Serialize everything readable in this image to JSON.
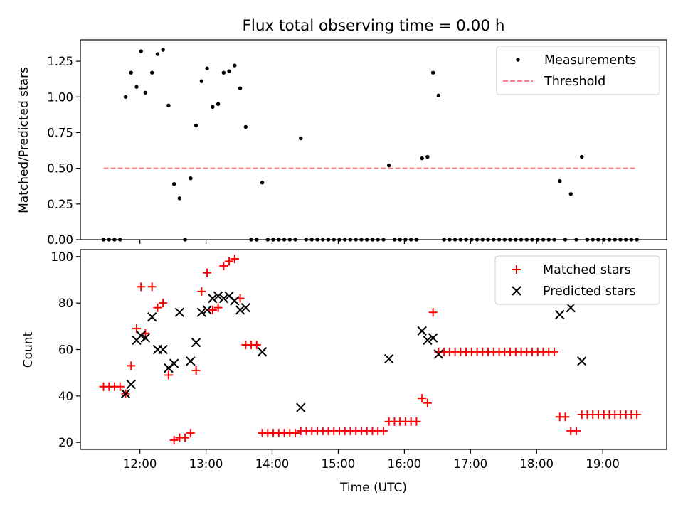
{
  "figure": {
    "title": "Flux total observing time = 0.00 h",
    "xlabel": "Time (UTC)"
  },
  "chart_data": [
    {
      "type": "scatter",
      "ylabel": "Matched/Predicted stars",
      "xlim": [
        "11:06",
        "19:58"
      ],
      "ylim": [
        0,
        1.4
      ],
      "yticks": [
        0.0,
        0.25,
        0.5,
        0.75,
        1.0,
        1.25
      ],
      "ytick_labels": [
        "0.00",
        "0.25",
        "0.50",
        "0.75",
        "1.00",
        "1.25"
      ],
      "xticks": [
        "12:00",
        "13:00",
        "14:00",
        "15:00",
        "16:00",
        "17:00",
        "18:00",
        "19:00"
      ],
      "legend": {
        "position": "top-right",
        "entries": [
          "Measurements",
          "Threshold"
        ]
      },
      "series": [
        {
          "name": "Measurements",
          "color": "#000000",
          "marker": "dot",
          "points": [
            [
              "11:27",
              0
            ],
            [
              "11:32",
              0
            ],
            [
              "11:37",
              0
            ],
            [
              "11:42",
              0
            ],
            [
              "11:47",
              1.0
            ],
            [
              "11:52",
              1.17
            ],
            [
              "11:57",
              1.07
            ],
            [
              "12:01",
              1.32
            ],
            [
              "12:05",
              1.03
            ],
            [
              "12:11",
              1.17
            ],
            [
              "12:16",
              1.3
            ],
            [
              "12:21",
              1.33
            ],
            [
              "12:26",
              0.94
            ],
            [
              "12:31",
              0.39
            ],
            [
              "12:36",
              0.29
            ],
            [
              "12:41",
              0
            ],
            [
              "12:46",
              0.43
            ],
            [
              "12:51",
              0.8
            ],
            [
              "12:56",
              1.11
            ],
            [
              "13:01",
              1.2
            ],
            [
              "13:06",
              0.93
            ],
            [
              "13:11",
              0.95
            ],
            [
              "13:16",
              1.17
            ],
            [
              "13:21",
              1.18
            ],
            [
              "13:26",
              1.22
            ],
            [
              "13:31",
              1.06
            ],
            [
              "13:36",
              0.79
            ],
            [
              "13:41",
              0
            ],
            [
              "13:46",
              0
            ],
            [
              "13:51",
              0.4
            ],
            [
              "13:56",
              0
            ],
            [
              "14:01",
              0
            ],
            [
              "14:06",
              0
            ],
            [
              "14:11",
              0
            ],
            [
              "14:16",
              0
            ],
            [
              "14:21",
              0
            ],
            [
              "14:26",
              0.71
            ],
            [
              "14:31",
              0
            ],
            [
              "14:36",
              0
            ],
            [
              "14:41",
              0
            ],
            [
              "14:46",
              0
            ],
            [
              "14:51",
              0
            ],
            [
              "14:56",
              0
            ],
            [
              "15:01",
              0
            ],
            [
              "15:06",
              0
            ],
            [
              "15:11",
              0
            ],
            [
              "15:16",
              0
            ],
            [
              "15:21",
              0
            ],
            [
              "15:26",
              0
            ],
            [
              "15:31",
              0
            ],
            [
              "15:36",
              0
            ],
            [
              "15:41",
              0
            ],
            [
              "15:46",
              0.52
            ],
            [
              "15:51",
              0
            ],
            [
              "15:56",
              0
            ],
            [
              "16:01",
              0
            ],
            [
              "16:06",
              0
            ],
            [
              "16:11",
              0
            ],
            [
              "16:16",
              0.57
            ],
            [
              "16:21",
              0.58
            ],
            [
              "16:26",
              1.17
            ],
            [
              "16:31",
              1.01
            ],
            [
              "16:36",
              0
            ],
            [
              "16:41",
              0
            ],
            [
              "16:46",
              0
            ],
            [
              "16:51",
              0
            ],
            [
              "16:56",
              0
            ],
            [
              "17:01",
              0
            ],
            [
              "17:06",
              0
            ],
            [
              "17:11",
              0
            ],
            [
              "17:16",
              0
            ],
            [
              "17:21",
              0
            ],
            [
              "17:26",
              0
            ],
            [
              "17:31",
              0
            ],
            [
              "17:36",
              0
            ],
            [
              "17:41",
              0
            ],
            [
              "17:46",
              0
            ],
            [
              "17:51",
              0
            ],
            [
              "17:56",
              0
            ],
            [
              "18:01",
              0
            ],
            [
              "18:06",
              0
            ],
            [
              "18:11",
              0
            ],
            [
              "18:16",
              0
            ],
            [
              "18:21",
              0.41
            ],
            [
              "18:26",
              0
            ],
            [
              "18:31",
              0.32
            ],
            [
              "18:36",
              0
            ],
            [
              "18:41",
              0.58
            ],
            [
              "18:46",
              0
            ],
            [
              "18:51",
              0
            ],
            [
              "18:56",
              0
            ],
            [
              "19:01",
              0
            ],
            [
              "19:06",
              0
            ],
            [
              "19:11",
              0
            ],
            [
              "19:16",
              0
            ],
            [
              "19:21",
              0
            ],
            [
              "19:26",
              0
            ],
            [
              "19:31",
              0
            ]
          ]
        },
        {
          "name": "Threshold",
          "color": "#ff7f7f",
          "marker": "dashed-line",
          "points": [
            [
              "11:27",
              0.5
            ],
            [
              "19:31",
              0.5
            ]
          ]
        }
      ]
    },
    {
      "type": "scatter",
      "ylabel": "Count",
      "xlim": [
        "11:06",
        "19:58"
      ],
      "ylim": [
        17,
        103
      ],
      "yticks": [
        20,
        40,
        60,
        80,
        100
      ],
      "ytick_labels": [
        "20",
        "40",
        "60",
        "80",
        "100"
      ],
      "xticks": [
        "12:00",
        "13:00",
        "14:00",
        "15:00",
        "16:00",
        "17:00",
        "18:00",
        "19:00"
      ],
      "xtick_labels": [
        "12:00",
        "13:00",
        "14:00",
        "15:00",
        "16:00",
        "17:00",
        "18:00",
        "19:00"
      ],
      "legend": {
        "position": "top-right",
        "entries": [
          "Matched stars",
          "Predicted stars"
        ]
      },
      "series": [
        {
          "name": "Matched stars",
          "color": "#ff0000",
          "marker": "plus",
          "points": [
            [
              "11:27",
              44
            ],
            [
              "11:32",
              44
            ],
            [
              "11:37",
              44
            ],
            [
              "11:42",
              44
            ],
            [
              "11:47",
              41
            ],
            [
              "11:52",
              53
            ],
            [
              "11:57",
              69
            ],
            [
              "12:01",
              87
            ],
            [
              "12:05",
              67
            ],
            [
              "12:11",
              87
            ],
            [
              "12:16",
              78
            ],
            [
              "12:21",
              80
            ],
            [
              "12:26",
              49
            ],
            [
              "12:31",
              21
            ],
            [
              "12:36",
              22
            ],
            [
              "12:41",
              22
            ],
            [
              "12:46",
              24
            ],
            [
              "12:51",
              51
            ],
            [
              "12:56",
              85
            ],
            [
              "13:01",
              93
            ],
            [
              "13:06",
              77
            ],
            [
              "13:11",
              78
            ],
            [
              "13:16",
              96
            ],
            [
              "13:21",
              98
            ],
            [
              "13:26",
              99
            ],
            [
              "13:31",
              82
            ],
            [
              "13:36",
              62
            ],
            [
              "13:41",
              62
            ],
            [
              "13:46",
              62
            ],
            [
              "13:51",
              24
            ],
            [
              "13:56",
              24
            ],
            [
              "14:01",
              24
            ],
            [
              "14:06",
              24
            ],
            [
              "14:11",
              24
            ],
            [
              "14:16",
              24
            ],
            [
              "14:21",
              24
            ],
            [
              "14:26",
              25
            ],
            [
              "14:31",
              25
            ],
            [
              "14:36",
              25
            ],
            [
              "14:41",
              25
            ],
            [
              "14:46",
              25
            ],
            [
              "14:51",
              25
            ],
            [
              "14:56",
              25
            ],
            [
              "15:01",
              25
            ],
            [
              "15:06",
              25
            ],
            [
              "15:11",
              25
            ],
            [
              "15:16",
              25
            ],
            [
              "15:21",
              25
            ],
            [
              "15:26",
              25
            ],
            [
              "15:31",
              25
            ],
            [
              "15:36",
              25
            ],
            [
              "15:41",
              25
            ],
            [
              "15:46",
              29
            ],
            [
              "15:51",
              29
            ],
            [
              "15:56",
              29
            ],
            [
              "16:01",
              29
            ],
            [
              "16:06",
              29
            ],
            [
              "16:11",
              29
            ],
            [
              "16:16",
              39
            ],
            [
              "16:21",
              37
            ],
            [
              "16:26",
              76
            ],
            [
              "16:31",
              59
            ],
            [
              "16:36",
              59
            ],
            [
              "16:41",
              59
            ],
            [
              "16:46",
              59
            ],
            [
              "16:51",
              59
            ],
            [
              "16:56",
              59
            ],
            [
              "17:01",
              59
            ],
            [
              "17:06",
              59
            ],
            [
              "17:11",
              59
            ],
            [
              "17:16",
              59
            ],
            [
              "17:21",
              59
            ],
            [
              "17:26",
              59
            ],
            [
              "17:31",
              59
            ],
            [
              "17:36",
              59
            ],
            [
              "17:41",
              59
            ],
            [
              "17:46",
              59
            ],
            [
              "17:51",
              59
            ],
            [
              "17:56",
              59
            ],
            [
              "18:01",
              59
            ],
            [
              "18:06",
              59
            ],
            [
              "18:11",
              59
            ],
            [
              "18:16",
              59
            ],
            [
              "18:21",
              31
            ],
            [
              "18:26",
              31
            ],
            [
              "18:31",
              25
            ],
            [
              "18:36",
              25
            ],
            [
              "18:41",
              32
            ],
            [
              "18:46",
              32
            ],
            [
              "18:51",
              32
            ],
            [
              "18:56",
              32
            ],
            [
              "19:01",
              32
            ],
            [
              "19:06",
              32
            ],
            [
              "19:11",
              32
            ],
            [
              "19:16",
              32
            ],
            [
              "19:21",
              32
            ],
            [
              "19:26",
              32
            ],
            [
              "19:31",
              32
            ]
          ]
        },
        {
          "name": "Predicted stars",
          "color": "#000000",
          "marker": "x",
          "points": [
            [
              "11:47",
              41
            ],
            [
              "11:52",
              45
            ],
            [
              "11:57",
              64
            ],
            [
              "12:01",
              66
            ],
            [
              "12:05",
              65
            ],
            [
              "12:11",
              74
            ],
            [
              "12:16",
              60
            ],
            [
              "12:21",
              60
            ],
            [
              "12:26",
              52
            ],
            [
              "12:31",
              54
            ],
            [
              "12:36",
              76
            ],
            [
              "12:46",
              55
            ],
            [
              "12:51",
              63
            ],
            [
              "12:56",
              76
            ],
            [
              "13:01",
              77
            ],
            [
              "13:06",
              82
            ],
            [
              "13:11",
              83
            ],
            [
              "13:16",
              82
            ],
            [
              "13:21",
              83
            ],
            [
              "13:26",
              81
            ],
            [
              "13:31",
              77
            ],
            [
              "13:36",
              78
            ],
            [
              "13:51",
              59
            ],
            [
              "14:26",
              35
            ],
            [
              "15:46",
              56
            ],
            [
              "16:16",
              68
            ],
            [
              "16:21",
              64
            ],
            [
              "16:26",
              65
            ],
            [
              "16:31",
              58
            ],
            [
              "18:21",
              75
            ],
            [
              "18:31",
              78
            ],
            [
              "18:41",
              55
            ]
          ]
        }
      ]
    }
  ]
}
